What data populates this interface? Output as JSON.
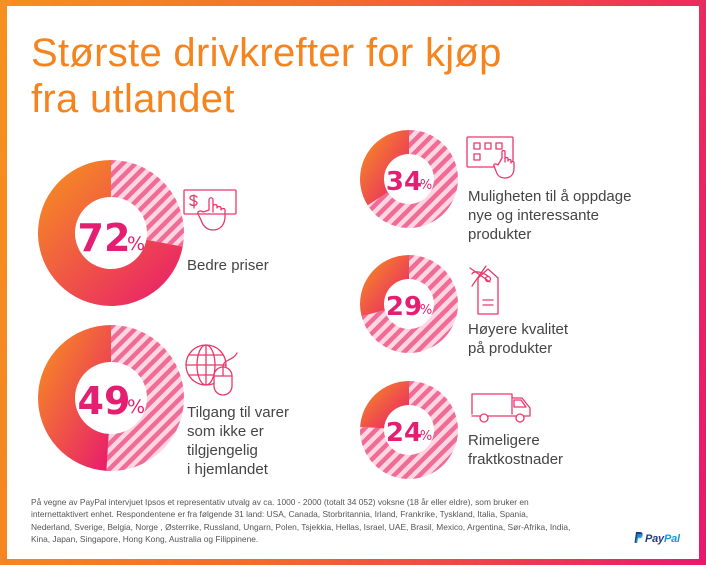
{
  "title_lines": [
    "Største drivkrefter for kjøp",
    "fra utlandet"
  ],
  "chart_data": {
    "type": "pie",
    "title": "Største drivkrefter for kjøp fra utlandet",
    "unit": "%",
    "items": [
      {
        "value": 72,
        "pct_text": "72",
        "label_lines": [
          "Bedre priser"
        ],
        "icon": "hand-holding-dollar-card-icon"
      },
      {
        "value": 49,
        "pct_text": "49",
        "label_lines": [
          "Tilgang til varer",
          "som ikke er",
          "tilgjengelig",
          "i hjemlandet"
        ],
        "icon": "globe-mouse-icon"
      },
      {
        "value": 34,
        "pct_text": "34",
        "label_lines": [
          "Muligheten til å oppdage",
          "nye og interessante",
          "produkter"
        ],
        "icon": "touchscreen-tap-icon"
      },
      {
        "value": 29,
        "pct_text": "29",
        "label_lines": [
          "Høyere kvalitet",
          "på produkter"
        ],
        "icon": "price-tag-icon"
      },
      {
        "value": 24,
        "pct_text": "24",
        "label_lines": [
          "Rimeligere",
          "fraktkostnader"
        ],
        "icon": "delivery-van-icon"
      }
    ],
    "colors": {
      "solid_start": "#f7941d",
      "solid_end": "#e8196e",
      "stripe_light": "#ffd6e2",
      "stripe_dark": "#f06b97"
    }
  },
  "percent_sign": "%",
  "footnote_lines": [
    "På vegne av PayPal intervjuet Ipsos et representativ utvalg av ca. 1000 - 2000 (totalt 34 052) voksne (18 år eller eldre), som bruker en",
    "internettaktivert enhet. Respondentene er fra følgende 31 land: USA, Canada, Storbritannia, Irland, Frankrike, Tyskland, Italia, Spania,",
    "Nederland, Sverige, Belgia, Norge , Østerrike, Russland, Ungarn, Polen, Tsjekkia, Hellas, Israel, UAE, Brasil, Mexico, Argentina, Sør-Afrika, India,",
    "Kina, Japan, Singapore, Hong Kong, Australia og Filippinene."
  ],
  "brand": {
    "part1": "Pay",
    "part2": "Pal"
  }
}
